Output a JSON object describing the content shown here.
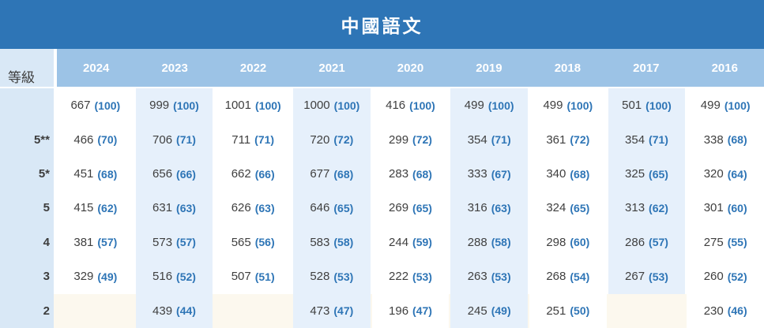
{
  "colors": {
    "title_bar": "#2e75b6",
    "header_band": "#9cc3e6",
    "label_column": "#d9e8f6",
    "tinted_column": "#e6f0fb",
    "bottom_row": "#fcf8ee",
    "value_text": "#3f3f3f",
    "bracket_text": "#2e75b6"
  },
  "chart_data": {
    "type": "table",
    "title": "中國語文",
    "row_header_label": "等級",
    "columns": [
      "2024",
      "2023",
      "2022",
      "2021",
      "2020",
      "2019",
      "2018",
      "2017",
      "2016"
    ],
    "tinted_column_indexes": [
      1,
      3,
      5,
      7
    ],
    "cell_format": "count (bracket)",
    "rows": [
      {
        "label": "",
        "values": [
          [
            667,
            100
          ],
          [
            999,
            100
          ],
          [
            1001,
            100
          ],
          [
            1000,
            100
          ],
          [
            416,
            100
          ],
          [
            499,
            100
          ],
          [
            499,
            100
          ],
          [
            501,
            100
          ],
          [
            499,
            100
          ]
        ]
      },
      {
        "label": "5**",
        "values": [
          [
            466,
            70
          ],
          [
            706,
            71
          ],
          [
            711,
            71
          ],
          [
            720,
            72
          ],
          [
            299,
            72
          ],
          [
            354,
            71
          ],
          [
            361,
            72
          ],
          [
            354,
            71
          ],
          [
            338,
            68
          ]
        ]
      },
      {
        "label": "5*",
        "values": [
          [
            451,
            68
          ],
          [
            656,
            66
          ],
          [
            662,
            66
          ],
          [
            677,
            68
          ],
          [
            283,
            68
          ],
          [
            333,
            67
          ],
          [
            340,
            68
          ],
          [
            325,
            65
          ],
          [
            320,
            64
          ]
        ]
      },
      {
        "label": "5",
        "values": [
          [
            415,
            62
          ],
          [
            631,
            63
          ],
          [
            626,
            63
          ],
          [
            646,
            65
          ],
          [
            269,
            65
          ],
          [
            316,
            63
          ],
          [
            324,
            65
          ],
          [
            313,
            62
          ],
          [
            301,
            60
          ]
        ]
      },
      {
        "label": "4",
        "values": [
          [
            381,
            57
          ],
          [
            573,
            57
          ],
          [
            565,
            56
          ],
          [
            583,
            58
          ],
          [
            244,
            59
          ],
          [
            288,
            58
          ],
          [
            298,
            60
          ],
          [
            286,
            57
          ],
          [
            275,
            55
          ]
        ]
      },
      {
        "label": "3",
        "values": [
          [
            329,
            49
          ],
          [
            516,
            52
          ],
          [
            507,
            51
          ],
          [
            528,
            53
          ],
          [
            222,
            53
          ],
          [
            263,
            53
          ],
          [
            268,
            54
          ],
          [
            267,
            53
          ],
          [
            260,
            52
          ]
        ]
      },
      {
        "label": "2",
        "values": [
          null,
          [
            439,
            44
          ],
          null,
          [
            473,
            47
          ],
          [
            196,
            47
          ],
          [
            245,
            49
          ],
          [
            251,
            50
          ],
          null,
          [
            230,
            46
          ]
        ]
      }
    ]
  }
}
